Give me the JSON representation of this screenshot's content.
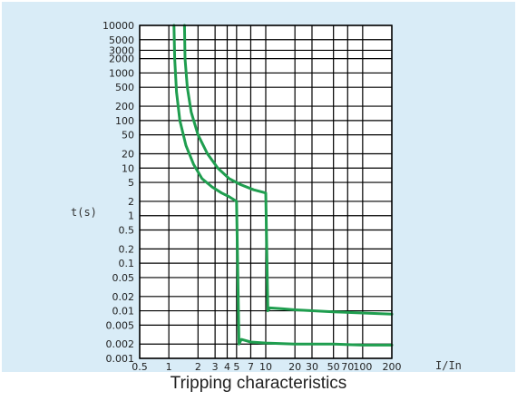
{
  "caption": "Tripping characteristics",
  "colors": {
    "panel_bg": "#d9ecf7",
    "plot_bg": "#ffffff",
    "grid": "#000000",
    "curve": "#1f9e4f",
    "text": "#222222"
  },
  "chart_data": {
    "type": "line",
    "title": "Tripping characteristics",
    "xlabel": "I/In",
    "ylabel": "t(s)",
    "x_scale": "log",
    "y_scale": "log",
    "xlim": [
      0.5,
      200
    ],
    "ylim": [
      0.001,
      10000
    ],
    "grid": true,
    "x_ticks": [
      {
        "value": 0.5,
        "label": "0.5"
      },
      {
        "value": 1,
        "label": "1"
      },
      {
        "value": 2,
        "label": "2"
      },
      {
        "value": 3,
        "label": "3"
      },
      {
        "value": 4,
        "label": "4"
      },
      {
        "value": 5,
        "label": "5"
      },
      {
        "value": 7,
        "label": "7"
      },
      {
        "value": 10,
        "label": "10"
      },
      {
        "value": 20,
        "label": "20"
      },
      {
        "value": 30,
        "label": "30"
      },
      {
        "value": 50,
        "label": "50"
      },
      {
        "value": 70,
        "label": "70"
      },
      {
        "value": 100,
        "label": "100"
      },
      {
        "value": 200,
        "label": "200"
      }
    ],
    "y_ticks": [
      {
        "value": 10000,
        "label": "10000"
      },
      {
        "value": 5000,
        "label": "5000"
      },
      {
        "value": 3000,
        "label": "3000"
      },
      {
        "value": 2000,
        "label": "2000"
      },
      {
        "value": 1000,
        "label": "1000"
      },
      {
        "value": 500,
        "label": "500"
      },
      {
        "value": 200,
        "label": "200"
      },
      {
        "value": 100,
        "label": "100"
      },
      {
        "value": 50,
        "label": "50"
      },
      {
        "value": 20,
        "label": "20"
      },
      {
        "value": 10,
        "label": "10"
      },
      {
        "value": 5,
        "label": "5"
      },
      {
        "value": 2,
        "label": "2"
      },
      {
        "value": 1,
        "label": "1"
      },
      {
        "value": 0.5,
        "label": "0.5"
      },
      {
        "value": 0.2,
        "label": "0.2"
      },
      {
        "value": 0.1,
        "label": "0.1"
      },
      {
        "value": 0.05,
        "label": "0.05"
      },
      {
        "value": 0.02,
        "label": "0.02"
      },
      {
        "value": 0.01,
        "label": "0.01"
      },
      {
        "value": 0.005,
        "label": "0.005"
      },
      {
        "value": 0.002,
        "label": "0.002"
      },
      {
        "value": 0.001,
        "label": "0.001"
      }
    ],
    "series": [
      {
        "x": [
          1.13,
          1.15,
          1.2,
          1.3,
          1.5,
          1.8,
          2.2,
          2.8,
          3.5,
          4.2,
          5.0
        ],
        "y": [
          10000,
          2000,
          400,
          100,
          30,
          12,
          6,
          4,
          3,
          2.5,
          2
        ],
        "y_bottom": 0.002,
        "x_bottom": 5.3,
        "tail_x": [
          5.6,
          7,
          10,
          20,
          50,
          100,
          200
        ],
        "tail_y": [
          0.0025,
          0.0022,
          0.0021,
          0.002,
          0.002,
          0.0019,
          0.0019
        ]
      },
      {
        "x": [
          1.45,
          1.47,
          1.55,
          1.7,
          2.0,
          2.5,
          3.2,
          4.2,
          5.5,
          7.5,
          10
        ],
        "y": [
          10000,
          2000,
          500,
          150,
          50,
          20,
          10,
          6,
          4.5,
          3.5,
          3
        ],
        "y_bottom": 0.01,
        "x_bottom": 10.5,
        "tail_x": [
          11,
          15,
          20,
          50,
          100,
          200
        ],
        "tail_y": [
          0.0115,
          0.011,
          0.0105,
          0.0095,
          0.009,
          0.0085
        ]
      }
    ]
  }
}
